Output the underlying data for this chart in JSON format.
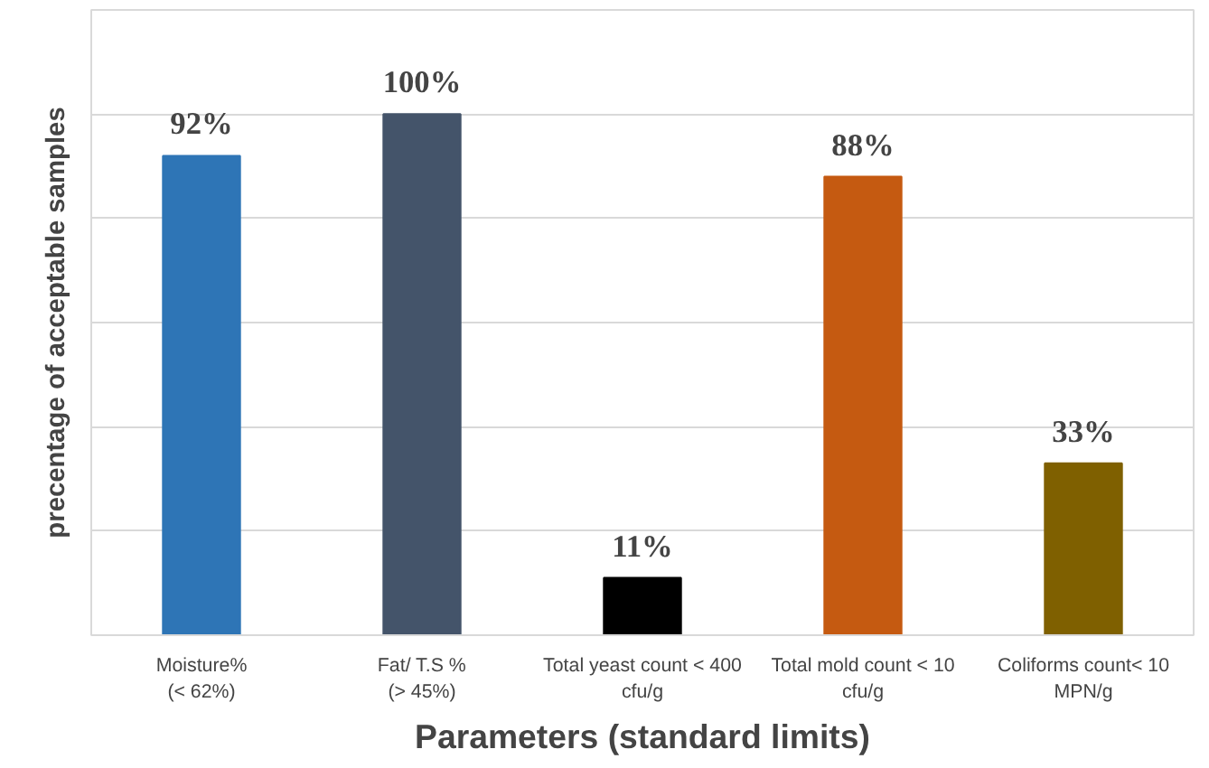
{
  "chart_data": {
    "type": "bar",
    "xlabel": "Parameters (standard limits)",
    "ylabel": "precentage of acceptable samples",
    "categories": [
      "Moisture%\n(< 62%)",
      "Fat/ T.S %\n(> 45%)",
      "Total yeast count < 400\ncfu/g",
      "Total mold count < 10\ncfu/g",
      "Coliforms count< 10\nMPN/g"
    ],
    "values": [
      92,
      100,
      11,
      88,
      33
    ],
    "colors": [
      "#2e75b6",
      "#44546a",
      "#000000",
      "#c55a11",
      "#7f6000"
    ],
    "value_labels": [
      "92%",
      "100%",
      "11%",
      "88%",
      "33%"
    ],
    "ylim": [
      0,
      120
    ],
    "yticks": [
      {
        "value": 0,
        "label": null
      },
      {
        "value": 20,
        "label": null
      },
      {
        "value": 40,
        "label": null
      },
      {
        "value": 60,
        "label": null
      },
      {
        "value": 80,
        "label": null
      },
      {
        "value": 100,
        "label": null
      },
      {
        "value": 120,
        "label": null
      }
    ],
    "grid": "y",
    "tick_labels": "x"
  }
}
